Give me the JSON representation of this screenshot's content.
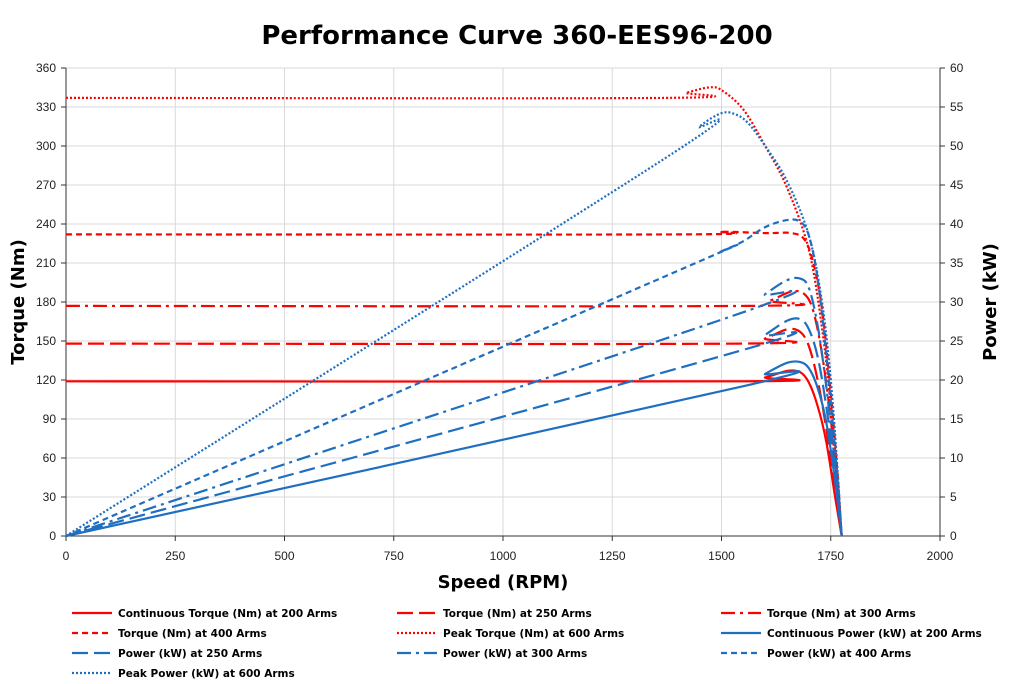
{
  "chart_data": {
    "type": "line",
    "title": "Performance Curve 360-EES96-200",
    "xlabel": "Speed (RPM)",
    "ylabel": "Torque (Nm)",
    "y2label": "Power (kW)",
    "xlim": [
      0,
      2000
    ],
    "ylim": [
      0,
      360
    ],
    "y2lim": [
      0,
      60
    ],
    "xticks": [
      0,
      250,
      500,
      750,
      1000,
      1250,
      1500,
      1750,
      2000
    ],
    "yticks": [
      0,
      30,
      60,
      90,
      120,
      150,
      180,
      210,
      240,
      270,
      300,
      330,
      360
    ],
    "y2ticks": [
      0,
      5,
      10,
      15,
      20,
      25,
      30,
      35,
      40,
      45,
      50,
      55,
      60
    ],
    "grid": true,
    "legend_position": "bottom",
    "series": [
      {
        "name": "Continuous Torque (Nm) at 200 Arms",
        "axis": "left",
        "color": "#ff0000",
        "dash": "solid",
        "x": [
          0,
          1550,
          1600,
          1650,
          1680,
          1700,
          1720,
          1740,
          1760,
          1775
        ],
        "y": [
          119,
          119,
          122,
          127,
          126,
          118,
          100,
          72,
          30,
          0
        ]
      },
      {
        "name": "Torque (Nm) at 250 Arms",
        "axis": "left",
        "color": "#ff0000",
        "dash": "longdash",
        "x": [
          0,
          1540,
          1600,
          1650,
          1680,
          1700,
          1720,
          1740,
          1760,
          1775
        ],
        "y": [
          148,
          148,
          152,
          159,
          157,
          146,
          120,
          82,
          35,
          0
        ]
      },
      {
        "name": "Torque (Nm) at 300 Arms",
        "axis": "left",
        "color": "#ff0000",
        "dash": "dashdot",
        "x": [
          0,
          1560,
          1610,
          1660,
          1690,
          1710,
          1730,
          1750,
          1765,
          1775
        ],
        "y": [
          177,
          177,
          181,
          188,
          186,
          173,
          140,
          90,
          40,
          0
        ]
      },
      {
        "name": "Torque (Nm) at 400 Arms",
        "axis": "left",
        "color": "#ff0000",
        "dash": "shortdash",
        "x": [
          0,
          1400,
          1500,
          1600,
          1660,
          1690,
          1710,
          1730,
          1750,
          1765,
          1775
        ],
        "y": [
          232,
          232,
          234,
          233,
          233,
          228,
          210,
          175,
          110,
          50,
          0
        ]
      },
      {
        "name": "Peak Torque (Nm) at 600 Arms",
        "axis": "left",
        "color": "#ff0000",
        "dash": "dot",
        "x": [
          0,
          1370,
          1420,
          1470,
          1500,
          1550,
          1600,
          1650,
          1700,
          1730,
          1750,
          1765,
          1775
        ],
        "y": [
          337,
          337,
          341,
          345,
          343,
          328,
          300,
          268,
          220,
          160,
          100,
          45,
          0
        ]
      },
      {
        "name": "Continuous Power (kW) at 200 Arms",
        "axis": "right",
        "color": "#1f6fc1",
        "dash": "solid",
        "x": [
          0,
          1550,
          1600,
          1650,
          1680,
          1700,
          1720,
          1740,
          1760,
          1775
        ],
        "y": [
          0,
          19.2,
          20.8,
          22.2,
          22.3,
          21.5,
          19.0,
          14.5,
          7.0,
          0
        ]
      },
      {
        "name": "Power (kW) at 250 Arms",
        "axis": "right",
        "color": "#1f6fc1",
        "dash": "longdash",
        "x": [
          0,
          1540,
          1600,
          1650,
          1680,
          1700,
          1720,
          1740,
          1760,
          1775
        ],
        "y": [
          0,
          23.7,
          25.8,
          27.6,
          27.8,
          26.5,
          23.0,
          16.5,
          8.0,
          0
        ]
      },
      {
        "name": "Power (kW) at 300 Arms",
        "axis": "right",
        "color": "#1f6fc1",
        "dash": "dashdot",
        "x": [
          0,
          1540,
          1600,
          1650,
          1680,
          1700,
          1720,
          1740,
          1760,
          1775
        ],
        "y": [
          0,
          28.5,
          31.0,
          32.8,
          33.0,
          31.8,
          27.0,
          19.0,
          9.0,
          0
        ]
      },
      {
        "name": "Power (kW) at 400 Arms",
        "axis": "right",
        "color": "#1f6fc1",
        "dash": "shortdash",
        "x": [
          0,
          1400,
          1500,
          1550,
          1600,
          1650,
          1680,
          1700,
          1720,
          1740,
          1760,
          1775
        ],
        "y": [
          0,
          34.0,
          36.5,
          37.8,
          39.6,
          40.5,
          40.3,
          38.5,
          33.0,
          23.0,
          11.0,
          0
        ]
      },
      {
        "name": "Peak Power (kW) at 600 Arms",
        "axis": "right",
        "color": "#1f6fc1",
        "dash": "dot",
        "x": [
          0,
          1370,
          1450,
          1500,
          1530,
          1560,
          1600,
          1650,
          1700,
          1730,
          1750,
          1765,
          1775
        ],
        "y": [
          0,
          48.4,
          52.5,
          54.2,
          54.1,
          53.0,
          50.0,
          45.5,
          38.5,
          30.0,
          20.0,
          9.0,
          0
        ]
      }
    ]
  }
}
